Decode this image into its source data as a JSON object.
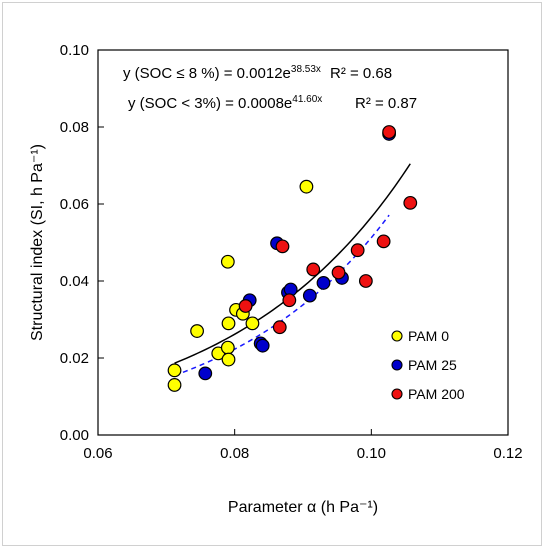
{
  "chart_data": {
    "type": "scatter",
    "title": "",
    "xlabel": "Parameter α (h Pa⁻¹)",
    "ylabel": "Structural index (SI, h Pa⁻¹)",
    "xlim": [
      0.06,
      0.12
    ],
    "ylim": [
      0.0,
      0.1
    ],
    "x_ticks": [
      "0.06",
      "0.08",
      "0.10",
      "0.12"
    ],
    "y_ticks": [
      "0.00",
      "0.02",
      "0.04",
      "0.06",
      "0.08",
      "0.10"
    ],
    "grid": false,
    "legend_position": "bottom-right",
    "series": [
      {
        "name": "PAM 0",
        "color": "#ffff00",
        "points": [
          [
            0.0712,
            0.0168
          ],
          [
            0.0712,
            0.013
          ],
          [
            0.0745,
            0.027
          ],
          [
            0.0776,
            0.0212
          ],
          [
            0.079,
            0.0227
          ],
          [
            0.0791,
            0.0196
          ],
          [
            0.0791,
            0.029
          ],
          [
            0.079,
            0.045
          ],
          [
            0.0802,
            0.0325
          ],
          [
            0.0812,
            0.0315
          ],
          [
            0.0826,
            0.029
          ],
          [
            0.0905,
            0.0645
          ]
        ]
      },
      {
        "name": "PAM 25",
        "color": "#0000cc",
        "points": [
          [
            0.0757,
            0.016
          ],
          [
            0.0822,
            0.035
          ],
          [
            0.0838,
            0.0238
          ],
          [
            0.0841,
            0.0232
          ],
          [
            0.0862,
            0.0498
          ],
          [
            0.0878,
            0.037
          ],
          [
            0.0882,
            0.0378
          ],
          [
            0.091,
            0.0362
          ],
          [
            0.093,
            0.0395
          ],
          [
            0.0957,
            0.0408
          ],
          [
            0.1026,
            0.0782
          ]
        ]
      },
      {
        "name": "PAM 200",
        "color": "#ee1111",
        "points": [
          [
            0.0816,
            0.0335
          ],
          [
            0.0866,
            0.028
          ],
          [
            0.087,
            0.049
          ],
          [
            0.088,
            0.035
          ],
          [
            0.0915,
            0.043
          ],
          [
            0.0952,
            0.0422
          ],
          [
            0.098,
            0.048
          ],
          [
            0.0992,
            0.04
          ],
          [
            0.1018,
            0.0503
          ],
          [
            0.1026,
            0.0787
          ],
          [
            0.1057,
            0.0603
          ]
        ]
      }
    ],
    "trendlines": [
      {
        "label": "y (SOC ≤ 8 %) = 0.0012e",
        "exponent": "38.53x",
        "r2": "R² = 0.68",
        "a": 0.0012,
        "b": 38.53,
        "x_range": [
          0.0712,
          0.1057
        ],
        "color": "#000000",
        "style": "solid"
      },
      {
        "label": "y (SOC < 3%) = 0.0008e",
        "exponent": "41.60x",
        "r2": "R² = 0.87",
        "a": 0.0008,
        "b": 41.6,
        "x_range": [
          0.0712,
          0.1026
        ],
        "color": "#1a1aff",
        "style": "dashed"
      }
    ]
  }
}
